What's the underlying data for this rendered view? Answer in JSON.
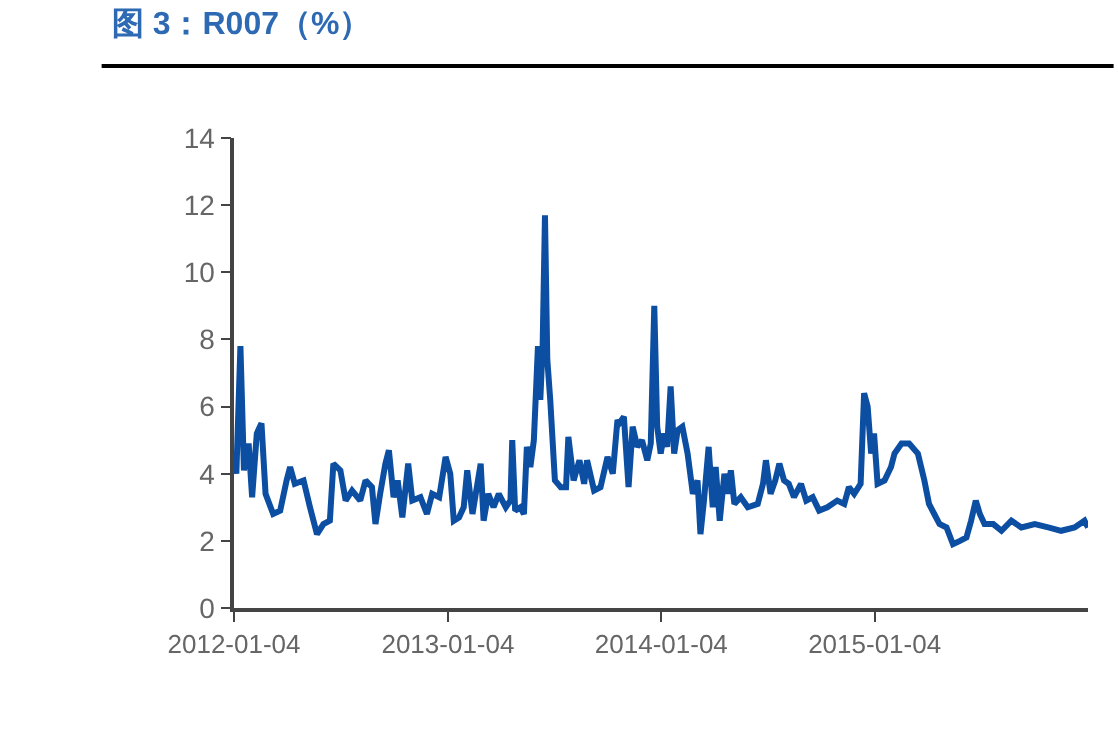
{
  "chart_data": {
    "type": "line",
    "title": "图 3：R007（%）",
    "x": [
      "2012-01-04",
      "2012-01-08",
      "2012-01-15",
      "2012-01-21",
      "2012-01-29",
      "2012-02-04",
      "2012-02-12",
      "2012-02-20",
      "2012-02-27",
      "2012-03-11",
      "2012-03-23",
      "2012-04-03",
      "2012-04-09",
      "2012-04-17",
      "2012-05-02",
      "2012-05-13",
      "2012-05-25",
      "2012-06-05",
      "2012-06-16",
      "2012-06-22",
      "2012-07-04",
      "2012-07-13",
      "2012-07-24",
      "2012-08-07",
      "2012-08-16",
      "2012-08-27",
      "2012-09-02",
      "2012-09-10",
      "2012-09-19",
      "2012-09-25",
      "2012-10-03",
      "2012-10-10",
      "2012-10-18",
      "2012-10-28",
      "2012-11-04",
      "2012-11-18",
      "2012-11-29",
      "2012-12-08",
      "2012-12-20",
      "2012-12-31",
      "2013-01-08",
      "2013-01-14",
      "2013-01-23",
      "2013-01-31",
      "2013-02-06",
      "2013-02-15",
      "2013-03-01",
      "2013-03-06",
      "2013-03-14",
      "2013-03-23",
      "2013-04-01",
      "2013-04-13",
      "2013-04-21",
      "2013-04-24",
      "2013-04-29",
      "2013-05-08",
      "2013-05-14",
      "2013-05-19",
      "2013-05-25",
      "2013-05-31",
      "2013-06-07",
      "2013-06-11",
      "2013-06-15",
      "2013-06-19",
      "2013-06-23",
      "2013-06-28",
      "2013-07-06",
      "2013-07-16",
      "2013-07-25",
      "2013-07-29",
      "2013-08-07",
      "2013-08-17",
      "2013-08-25",
      "2013-08-30",
      "2013-09-11",
      "2013-09-22",
      "2013-10-04",
      "2013-10-13",
      "2013-10-21",
      "2013-10-24",
      "2013-11-01",
      "2013-11-09",
      "2013-11-16",
      "2013-11-24",
      "2013-12-02",
      "2013-12-11",
      "2013-12-17",
      "2013-12-23",
      "2013-12-28",
      "2014-01-03",
      "2014-01-09",
      "2014-01-14",
      "2014-01-20",
      "2014-01-26",
      "2014-02-01",
      "2014-02-09",
      "2014-02-18",
      "2014-02-27",
      "2014-03-07",
      "2014-03-12",
      "2014-03-18",
      "2014-03-26",
      "2014-04-02",
      "2014-04-07",
      "2014-04-14",
      "2014-04-22",
      "2014-04-27",
      "2014-05-03",
      "2014-05-09",
      "2014-05-20",
      "2014-06-01",
      "2014-06-18",
      "2014-06-27",
      "2014-07-02",
      "2014-07-10",
      "2014-07-18",
      "2014-07-25",
      "2014-08-02",
      "2014-08-10",
      "2014-08-19",
      "2014-08-31",
      "2014-09-09",
      "2014-09-20",
      "2014-10-01",
      "2014-10-15",
      "2014-11-01",
      "2014-11-13",
      "2014-11-21",
      "2014-11-30",
      "2014-12-11",
      "2014-12-17",
      "2014-12-23",
      "2014-12-29",
      "2015-01-03",
      "2015-01-09",
      "2015-01-21",
      "2015-02-01",
      "2015-02-07",
      "2015-02-19",
      "2015-03-04",
      "2015-03-19",
      "2015-03-30",
      "2015-04-07",
      "2015-04-16",
      "2015-04-25",
      "2015-05-07",
      "2015-05-18",
      "2015-05-30",
      "2015-06-10",
      "2015-06-18",
      "2015-06-26",
      "2015-07-03",
      "2015-07-11",
      "2015-07-26",
      "2015-08-09",
      "2015-08-26",
      "2015-09-12",
      "2015-10-05",
      "2015-10-28",
      "2015-11-19",
      "2015-12-12",
      "2015-12-29",
      "2016-01-04"
    ],
    "series": [
      {
        "color": "#0c4ea2",
        "values": [
          4.6,
          4.0,
          7.8,
          4.1,
          4.9,
          3.3,
          5.2,
          5.5,
          3.4,
          2.8,
          2.9,
          3.8,
          4.2,
          3.7,
          3.8,
          3.0,
          2.2,
          2.5,
          2.6,
          4.3,
          4.1,
          3.2,
          3.5,
          3.2,
          3.8,
          3.6,
          2.5,
          3.4,
          4.3,
          4.7,
          3.3,
          3.8,
          2.7,
          4.3,
          3.2,
          3.3,
          2.8,
          3.4,
          3.3,
          4.5,
          4.0,
          2.6,
          2.7,
          3.0,
          4.1,
          2.8,
          4.3,
          2.6,
          3.4,
          3.0,
          3.4,
          3.0,
          3.2,
          5.0,
          2.9,
          3.0,
          2.8,
          4.8,
          4.2,
          5.0,
          7.8,
          6.2,
          7.8,
          11.7,
          7.4,
          6.2,
          3.8,
          3.6,
          3.6,
          5.1,
          3.8,
          4.4,
          3.7,
          4.4,
          3.5,
          3.6,
          4.5,
          4.0,
          5.6,
          5.5,
          5.7,
          3.6,
          5.4,
          4.8,
          5.0,
          4.4,
          4.9,
          9.0,
          5.4,
          4.6,
          5.2,
          4.8,
          6.6,
          4.6,
          5.3,
          5.4,
          4.6,
          3.4,
          3.8,
          2.2,
          3.2,
          4.8,
          3.0,
          4.2,
          2.6,
          4.0,
          3.4,
          4.1,
          3.1,
          3.3,
          3.0,
          3.1,
          3.7,
          4.4,
          3.4,
          3.8,
          4.3,
          3.8,
          3.7,
          3.3,
          3.7,
          3.2,
          3.3,
          2.9,
          3.0,
          3.2,
          3.1,
          3.6,
          3.4,
          3.7,
          6.4,
          6.0,
          4.6,
          5.2,
          3.7,
          3.8,
          4.2,
          4.6,
          4.9,
          4.9,
          4.6,
          3.8,
          3.1,
          2.8,
          2.5,
          2.4,
          1.9,
          2.0,
          2.1,
          2.6,
          3.2,
          2.8,
          2.5,
          2.5,
          2.3,
          2.6,
          2.4,
          2.5,
          2.4,
          2.3,
          2.4,
          2.6,
          2.4
        ]
      }
    ],
    "xlim": [
      "2012-01-04",
      "2016-01-04"
    ],
    "xticks": [
      {
        "value": "2012-01-04",
        "label": "2012-01-04"
      },
      {
        "value": "2013-01-04",
        "label": "2013-01-04"
      },
      {
        "value": "2014-01-04",
        "label": "2014-01-04"
      },
      {
        "value": "2015-01-04",
        "label": "2015-01-04"
      }
    ],
    "ylim": [
      0,
      14
    ],
    "yticks": [
      0,
      2,
      4,
      6,
      8,
      10,
      12,
      14
    ],
    "marker": "none",
    "line_style": "solid"
  }
}
